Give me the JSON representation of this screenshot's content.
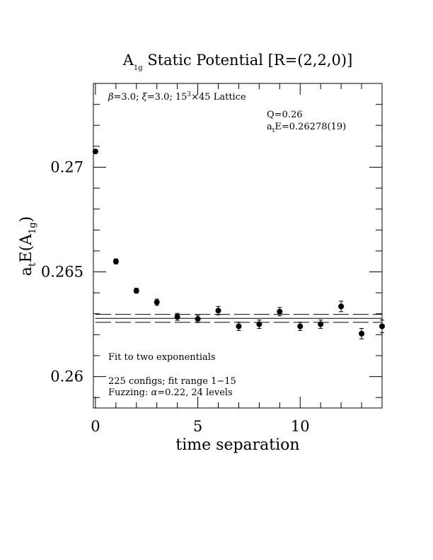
{
  "chart_data": {
    "type": "scatter",
    "title": {
      "prefix": "A",
      "prefix_sub": "1g",
      "rest": " Static Potential [R=(2,2,0)]"
    },
    "xlabel": "time separation",
    "ylabel": {
      "a": "a",
      "a_sub": "t",
      "mid": "E(A",
      "mid_sub": "1g",
      "end": ")"
    },
    "xlim": [
      -0.1,
      14.0
    ],
    "ylim": [
      0.2585,
      0.274
    ],
    "x_ticks": [
      0,
      5,
      10
    ],
    "x_tick_labels": [
      "0",
      "5",
      "10"
    ],
    "y_ticks": [
      0.26,
      0.265,
      0.27
    ],
    "y_tick_labels": [
      "0.26",
      "0.265",
      "0.27"
    ],
    "annotations": {
      "lattice": {
        "beta": "β",
        "beta_text": "=3.0; ",
        "xi": "ξ",
        "xi_text": "=3.0; 15",
        "sup": "3",
        "tail": "×45 Lattice"
      },
      "q": "Q=0.26",
      "fit_energy": {
        "a": "a",
        "a_sub": "t",
        "text": "E=0.26278(19)"
      },
      "fit_method": "Fit to two exponentials",
      "configs": "225 configs; fit range 1−15",
      "fuzzing": {
        "prefix": "Fuzzing: ",
        "alpha": "α",
        "text": "=0.22, 24 levels"
      }
    },
    "fit": {
      "central": 0.26278,
      "error": 0.00019,
      "x_from": 0,
      "x_to": 14.0
    },
    "series": [
      {
        "x": [
          0,
          1,
          2,
          3,
          4,
          5,
          6,
          7,
          8,
          9,
          10,
          11,
          12,
          13,
          14
        ],
        "y": [
          0.27075,
          0.2655,
          0.2641,
          0.26355,
          0.26285,
          0.26275,
          0.26315,
          0.2624,
          0.2625,
          0.2631,
          0.2624,
          0.2625,
          0.26335,
          0.26205,
          0.2624
        ],
        "err": [
          5e-05,
          0.00012,
          0.00012,
          0.00015,
          0.00017,
          0.00017,
          0.0002,
          0.0002,
          0.0002,
          0.0002,
          0.0002,
          0.0002,
          0.00025,
          0.00025,
          0.0003
        ]
      }
    ]
  }
}
